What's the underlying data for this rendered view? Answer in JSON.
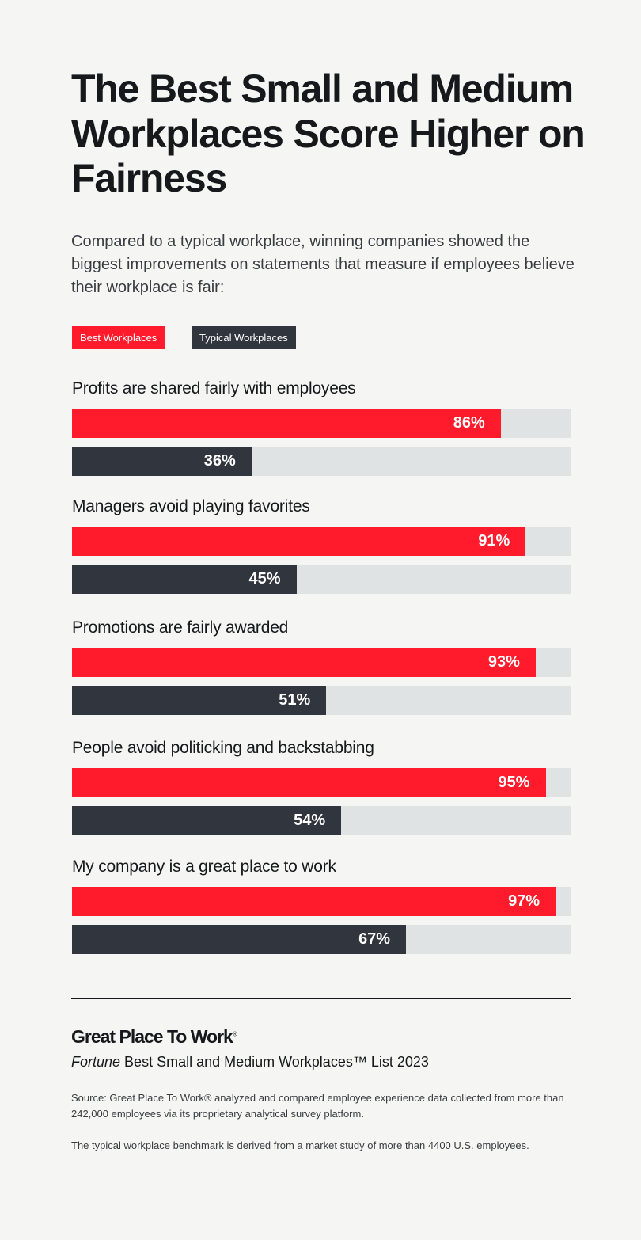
{
  "title": "The Best Small and Medium Workplaces Score Higher on Fairness",
  "subtitle": "Compared to a typical workplace, winning companies showed the biggest improvements on statements that measure if employees believe their workplace is fair:",
  "colors": {
    "best": "#ff1b2b",
    "typical": "#31353d",
    "track": "#dfe3e3",
    "background": "#f5f6f3"
  },
  "chart_data": {
    "type": "bar",
    "orientation": "horizontal",
    "xlim": [
      0,
      100
    ],
    "grid": false,
    "legend_placement": "top-left",
    "categories": [
      "Profits are shared fairly with employees",
      "Managers avoid playing favorites",
      "Promotions are fairly awarded",
      "People avoid politicking and backstabbing",
      "My company is a great place to work"
    ],
    "series": [
      {
        "name": "Best Workplaces",
        "values": [
          86,
          91,
          93,
          95,
          97
        ],
        "labels": [
          "86%",
          "91%",
          "93%",
          "95%",
          "97%"
        ]
      },
      {
        "name": "Typical Workplaces",
        "values": [
          36,
          45,
          51,
          54,
          67
        ],
        "labels": [
          "36%",
          "45%",
          "51%",
          "54%",
          "67%"
        ]
      }
    ]
  },
  "footer": {
    "logo": "Great Place To Work",
    "logo_mark": "®",
    "list_italic": "Fortune",
    "list_rest": " Best Small and Medium Workplaces™ List 2023",
    "source": "Source: Great Place To Work® analyzed and compared employee experience data collected from more than 242,000 employees via its proprietary analytical survey platform.",
    "benchmark": "The typical workplace benchmark is derived from a market study of more than 4400 U.S. employees."
  }
}
